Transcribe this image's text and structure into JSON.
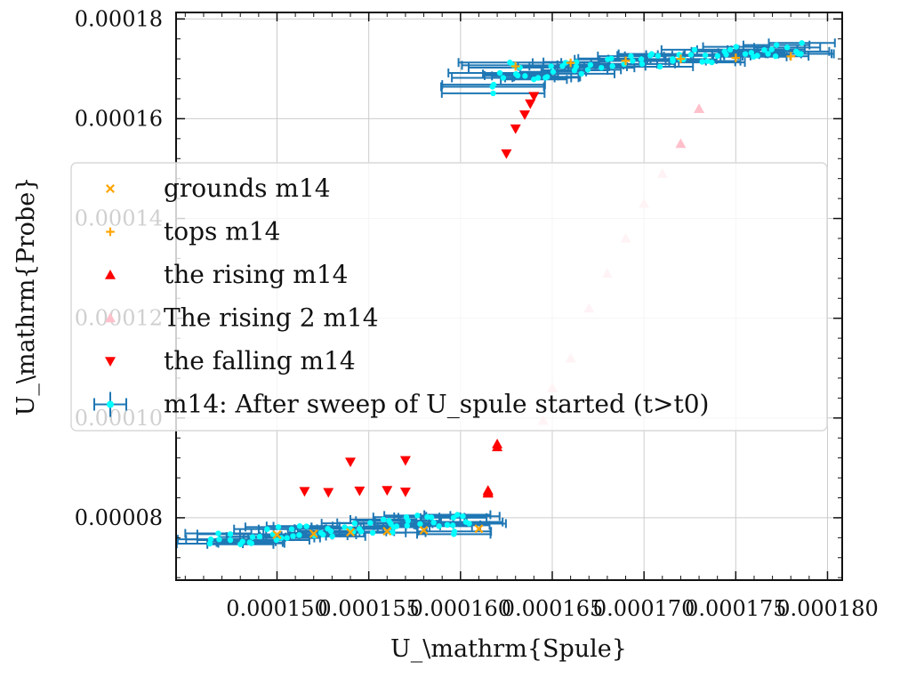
{
  "chart_data": {
    "type": "scatter",
    "xlabel": "U_\\mathrm{Spule}",
    "ylabel": "U_\\mathrm{Probe}",
    "xlim": [
      0.0001445,
      0.0001808
    ],
    "ylim": [
      6.75e-05,
      0.0001813
    ],
    "x_ticks": [
      0.00015,
      0.000155,
      0.00016,
      0.000165,
      0.00017,
      0.000175,
      0.00018
    ],
    "x_tick_labels": [
      "0.000150",
      "0.000155",
      "0.000160",
      "0.000165",
      "0.000170",
      "0.000175",
      "0.000180"
    ],
    "y_ticks": [
      8e-05,
      0.0001,
      0.00012,
      0.00014,
      0.00016,
      0.00018
    ],
    "y_tick_labels": [
      "0.00008",
      "0.00010",
      "0.00012",
      "0.00014",
      "0.00016",
      "0.00018"
    ],
    "grid": true,
    "legend": "center",
    "errorbar_series": {
      "name": "m14: After sweep of U_spule started (t>t0)",
      "color": "#1f77b4",
      "marker_color": "#00ffff",
      "groups": [
        {
          "x_from": 0.0001464,
          "x_to": 0.0001597,
          "y_from": 7.55e-05,
          "y_to": 7.95e-05,
          "count": 55,
          "xerr": 1.8e-06
        },
        {
          "x_from": 0.0001598,
          "x_to": 0.0001603,
          "y_from": 7.75e-05,
          "y_to": 8.05e-05,
          "count": 6,
          "xerr": 2e-06
        },
        {
          "x_from": 0.0001632,
          "x_to": 0.0001789,
          "y_from": 0.000169,
          "y_to": 0.0001745,
          "count": 60,
          "xerr": 1.8e-06
        },
        {
          "x_from": 0.0001615,
          "x_to": 0.000163,
          "y_from": 0.0001665,
          "y_to": 0.0001705,
          "count": 8,
          "xerr": 2.8e-06
        }
      ]
    },
    "series": [
      {
        "name": "grounds m14",
        "marker": "x",
        "color": "#ffa500",
        "x": [
          0.00015,
          0.000152,
          0.000154,
          0.000156,
          0.000158,
          0.000161
        ],
        "y": [
          7.66e-05,
          7.68e-05,
          7.71e-05,
          7.73e-05,
          7.75e-05,
          7.78e-05
        ]
      },
      {
        "name": "tops m14",
        "marker": "plus",
        "color": "#ffa500",
        "x": [
          0.000163,
          0.000166,
          0.000169,
          0.000172,
          0.000175,
          0.000178
        ],
        "y": [
          0.0001705,
          0.0001712,
          0.0001716,
          0.000172,
          0.0001722,
          0.0001725
        ]
      },
      {
        "name": "the rising m14",
        "marker": "triangle-up",
        "color": "#ff0000",
        "x": [
          0.0001615,
          0.0001615,
          0.0001615,
          0.000162,
          0.000162
        ],
        "y": [
          8.49e-05,
          8.52e-05,
          8.55e-05,
          9.42e-05,
          9.48e-05
        ]
      },
      {
        "name": "The rising 2 m14",
        "marker": "triangle-up",
        "color": "#ffc0cb",
        "x": [
          0.0001645,
          0.000165,
          0.000166,
          0.000167,
          0.000168,
          0.000169,
          0.00017,
          0.000171,
          0.000172,
          0.000173
        ],
        "y": [
          9.95e-05,
          0.000106,
          0.000112,
          0.000122,
          0.000129,
          0.000136,
          0.000143,
          0.000149,
          0.000155,
          0.000162
        ]
      },
      {
        "name": "the falling m14",
        "marker": "triangle-down",
        "color": "#ff0000",
        "x": [
          0.000164,
          0.0001638,
          0.0001635,
          0.000163,
          0.0001625,
          0.000157,
          0.000154,
          0.0001515,
          0.0001528,
          0.0001545,
          0.000156,
          0.000157
        ],
        "y": [
          0.0001645,
          0.000163,
          0.0001608,
          0.000158,
          0.000153,
          9.15e-05,
          9.12e-05,
          8.53e-05,
          8.51e-05,
          8.54e-05,
          8.55e-05,
          8.52e-05
        ]
      }
    ]
  }
}
